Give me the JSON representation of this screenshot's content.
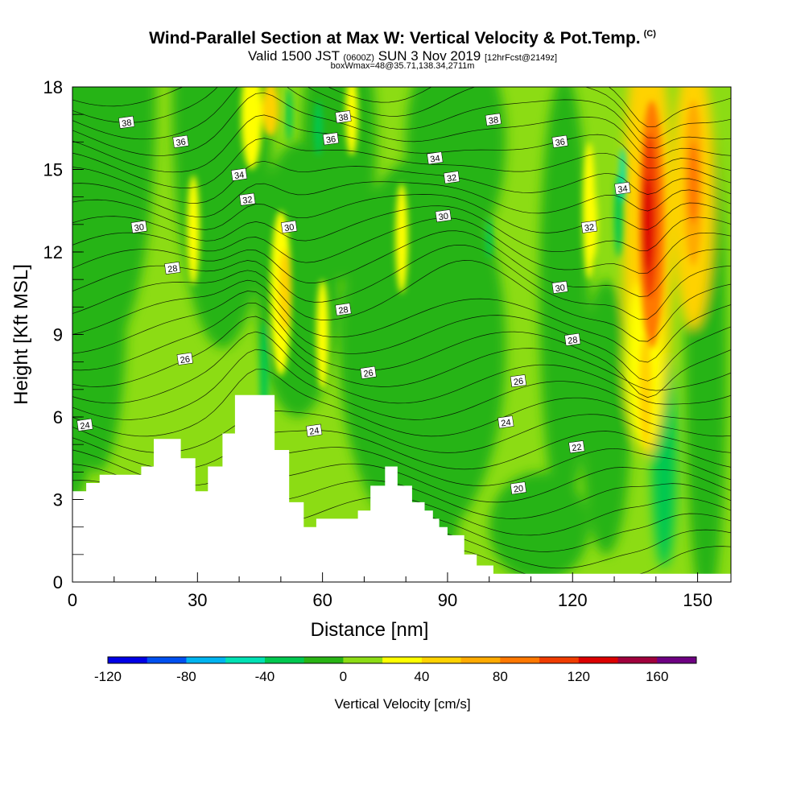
{
  "header": {
    "title": "Wind-Parallel Section at Max W: Vertical Velocity & Pot.Temp.",
    "copyright": "(C)",
    "valid_prefix": "Valid 1500 JST",
    "valid_utc": "(0600Z)",
    "valid_date": "SUN 3 Nov 2019",
    "forecast": "[12hrFcst@2149z]",
    "box_info": "boxWmax=48@35.71,138.34,2711m"
  },
  "chart_data": {
    "type": "heatmap",
    "xlabel": "Distance [nm]",
    "ylabel": "Height [Kft MSL]",
    "xlim": [
      0,
      158
    ],
    "ylim": [
      0,
      18
    ],
    "x_ticks": [
      0,
      30,
      60,
      90,
      120,
      150
    ],
    "y_ticks": [
      0,
      3,
      6,
      9,
      12,
      15,
      18
    ],
    "x_tick_labels": [
      "0",
      "30",
      "60",
      "90",
      "120",
      "150"
    ],
    "y_tick_labels": [
      "0",
      "3",
      "6",
      "9",
      "12",
      "15",
      "18"
    ],
    "colorbar": {
      "label": "Vertical Velocity [cm/s]",
      "range": [
        -120,
        180
      ],
      "step": 20,
      "tick_values": [
        -120,
        -80,
        -40,
        0,
        40,
        80,
        120,
        160
      ],
      "tick_labels": [
        "-120",
        "-80",
        "-40",
        "0",
        "40",
        "80",
        "120",
        "160"
      ],
      "colors": [
        "#0000e6",
        "#0050f0",
        "#00b4f0",
        "#00e1b4",
        "#00c850",
        "#28b414",
        "#8cdc14",
        "#ffff00",
        "#ffd200",
        "#ffaa00",
        "#ff7800",
        "#f03c00",
        "#dc0000",
        "#a0003c",
        "#6e0082"
      ]
    },
    "vertical_velocity_maxima": [
      {
        "x": 138,
        "y_range": [
          10,
          16
        ],
        "w": 140
      },
      {
        "x": 149,
        "y_range": [
          12,
          17
        ],
        "w": 90
      },
      {
        "x": 47,
        "y_range": [
          7,
          13
        ],
        "w": 45
      },
      {
        "x": 44,
        "y_range": [
          14,
          18
        ],
        "w": 45
      }
    ],
    "terrain": [
      {
        "x": 0,
        "top": 3.3
      },
      {
        "x": 3.3,
        "top": 3.6
      },
      {
        "x": 6.5,
        "top": 3.9
      },
      {
        "x": 16.5,
        "top": 4.2
      },
      {
        "x": 19.5,
        "top": 5.2
      },
      {
        "x": 26,
        "top": 4.5
      },
      {
        "x": 29.5,
        "top": 3.3
      },
      {
        "x": 32.5,
        "top": 4.2
      },
      {
        "x": 36,
        "top": 5.4
      },
      {
        "x": 39,
        "top": 6.8
      },
      {
        "x": 48.5,
        "top": 4.8
      },
      {
        "x": 52,
        "top": 2.9
      },
      {
        "x": 55.5,
        "top": 2.0
      },
      {
        "x": 58.5,
        "top": 2.3
      },
      {
        "x": 68.5,
        "top": 2.6
      },
      {
        "x": 71.5,
        "top": 3.5
      },
      {
        "x": 75,
        "top": 4.2
      },
      {
        "x": 78,
        "top": 3.5
      },
      {
        "x": 81.5,
        "top": 2.9
      },
      {
        "x": 84.5,
        "top": 2.6
      },
      {
        "x": 86.5,
        "top": 2.3
      },
      {
        "x": 88,
        "top": 2.0
      },
      {
        "x": 90,
        "top": 1.7
      },
      {
        "x": 94,
        "top": 1.0
      },
      {
        "x": 97,
        "top": 0.6
      },
      {
        "x": 101,
        "top": 0.3
      },
      {
        "x": 158,
        "top": 0.3
      }
    ],
    "isentrope_labels": [
      {
        "text": "38",
        "x": 13,
        "y": 16.7
      },
      {
        "text": "36",
        "x": 26,
        "y": 16.0
      },
      {
        "text": "34",
        "x": 40,
        "y": 14.8
      },
      {
        "text": "32",
        "x": 42,
        "y": 13.9
      },
      {
        "text": "30",
        "x": 16,
        "y": 12.9
      },
      {
        "text": "28",
        "x": 24,
        "y": 11.4
      },
      {
        "text": "26",
        "x": 27,
        "y": 8.1
      },
      {
        "text": "24",
        "x": 3,
        "y": 5.7
      },
      {
        "text": "30",
        "x": 52,
        "y": 12.9
      },
      {
        "text": "38",
        "x": 65,
        "y": 16.9
      },
      {
        "text": "36",
        "x": 62,
        "y": 16.1
      },
      {
        "text": "28",
        "x": 65,
        "y": 9.9
      },
      {
        "text": "26",
        "x": 71,
        "y": 7.6
      },
      {
        "text": "24",
        "x": 58,
        "y": 5.5
      },
      {
        "text": "34",
        "x": 87,
        "y": 15.4
      },
      {
        "text": "32",
        "x": 91,
        "y": 14.7
      },
      {
        "text": "30",
        "x": 89,
        "y": 13.3
      },
      {
        "text": "38",
        "x": 101,
        "y": 16.8
      },
      {
        "text": "36",
        "x": 117,
        "y": 16.0
      },
      {
        "text": "32",
        "x": 124,
        "y": 12.9
      },
      {
        "text": "30",
        "x": 117,
        "y": 10.7
      },
      {
        "text": "28",
        "x": 120,
        "y": 8.8
      },
      {
        "text": "26",
        "x": 107,
        "y": 7.3
      },
      {
        "text": "24",
        "x": 104,
        "y": 5.8
      },
      {
        "text": "22",
        "x": 121,
        "y": 4.9
      },
      {
        "text": "20",
        "x": 107,
        "y": 3.4
      },
      {
        "text": "34",
        "x": 132,
        "y": 14.3
      }
    ]
  }
}
